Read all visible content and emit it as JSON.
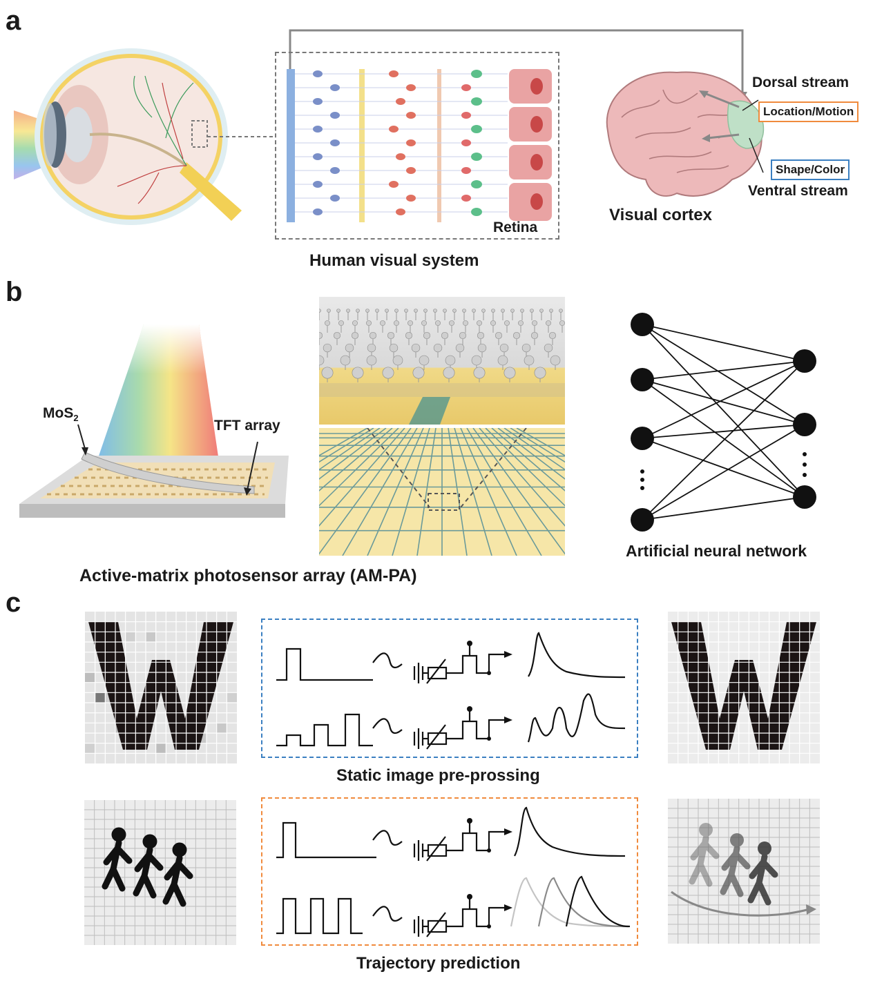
{
  "panels": {
    "a": "a",
    "b": "b",
    "c": "c"
  },
  "panel_a": {
    "retina_label": "Retina",
    "caption": "Human visual system",
    "dorsal_stream": "Dorsal stream",
    "location_motion": "Location/Motion",
    "shape_color": "Shape/Color",
    "ventral_stream": "Ventral stream",
    "visual_cortex": "Visual cortex"
  },
  "panel_b": {
    "mos2": "MoS",
    "mos2_sub": "2",
    "tft_array": "TFT array",
    "caption": "Active-matrix photosensor array (AM-PA)",
    "ann_caption": "Artificial neural network"
  },
  "panel_c": {
    "static_caption": "Static image pre-prossing",
    "trajectory_caption": "Trajectory prediction"
  },
  "colors": {
    "orange_box": "#f08a3c",
    "blue_box": "#3a7fc1",
    "bipolar": "#e07060",
    "ganglion": "#7a8fc8",
    "photoreceptor": "#e06a6a",
    "cone": "#5cbf8a",
    "gold": "#f2d77c"
  }
}
